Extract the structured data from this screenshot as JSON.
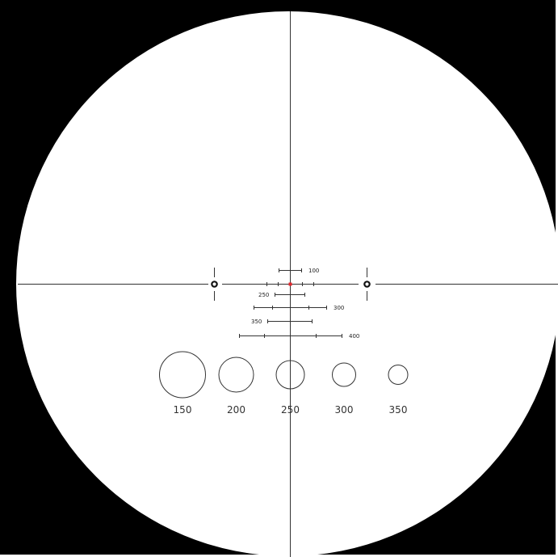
{
  "reticle": {
    "colors": {
      "background": "#000000",
      "field": "#ffffff",
      "line": "#222222",
      "center_dot": "#e5262b"
    },
    "holdover_bars": [
      {
        "label": "100"
      },
      {
        "label": "250"
      },
      {
        "label": "300"
      },
      {
        "label": "350"
      },
      {
        "label": "400"
      }
    ],
    "ranging_circles": [
      {
        "label": "150"
      },
      {
        "label": "200"
      },
      {
        "label": "250"
      },
      {
        "label": "300"
      },
      {
        "label": "350"
      }
    ],
    "post_markers": [
      {
        "name": "left-ring-marker"
      },
      {
        "name": "right-ring-marker"
      }
    ]
  }
}
